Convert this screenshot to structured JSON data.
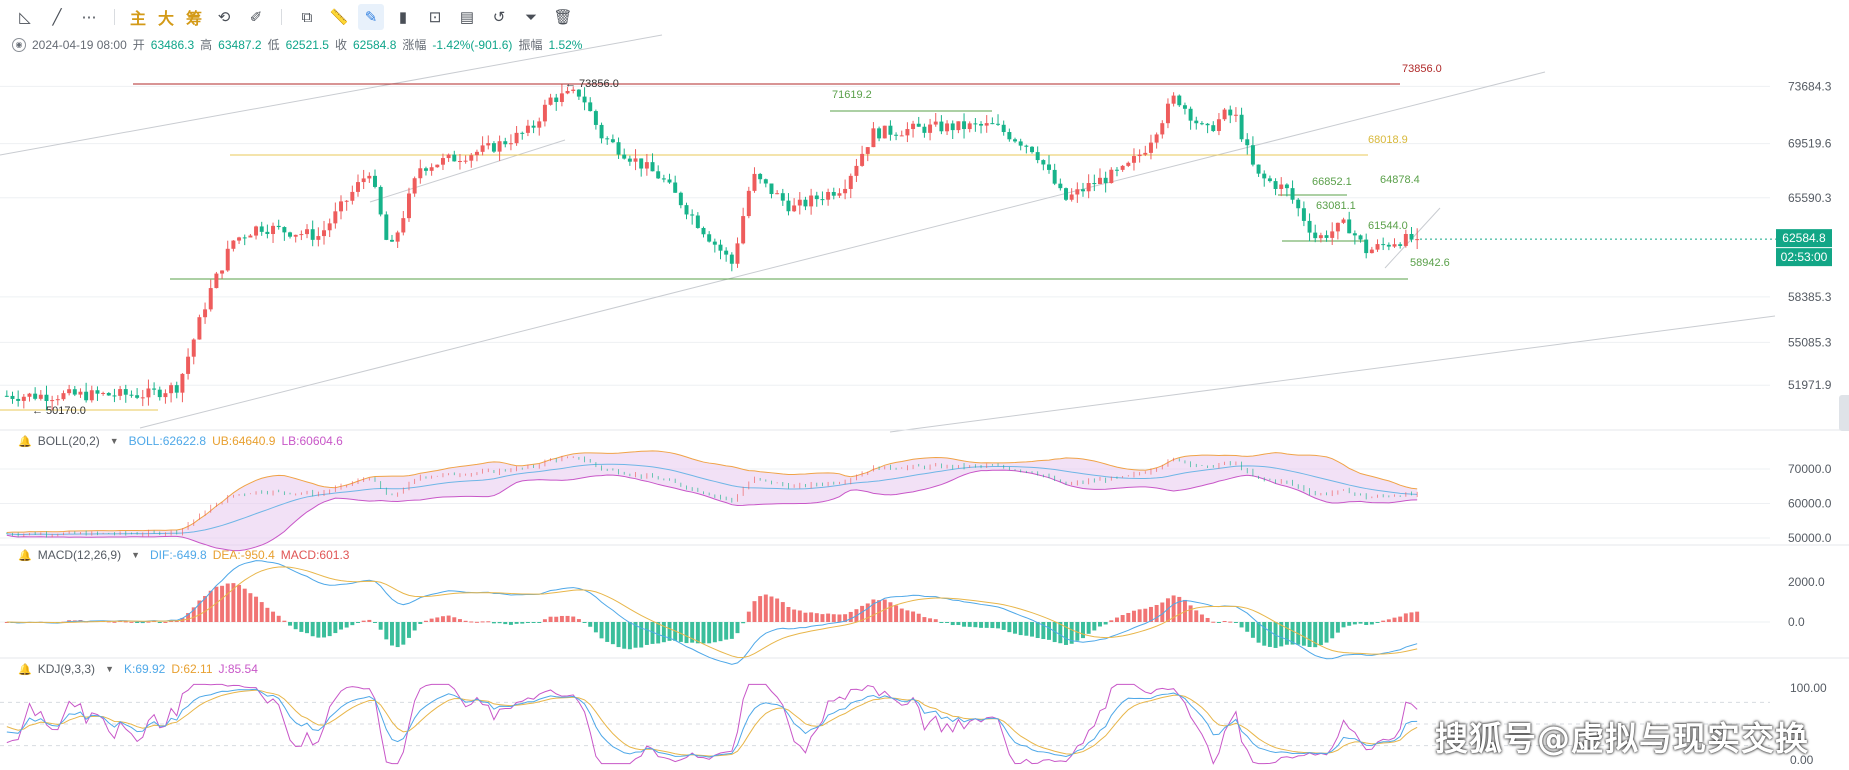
{
  "toolbar": {
    "items": [
      {
        "name": "trend-angle-icon",
        "glyph": "◺"
      },
      {
        "name": "line-tool-icon",
        "glyph": "╱"
      },
      {
        "name": "more-tools-icon",
        "glyph": "⋯"
      },
      {
        "sep": true
      },
      {
        "name": "main-indicator-button",
        "text": "主",
        "cn": true
      },
      {
        "name": "large-button",
        "text": "大",
        "cn": true
      },
      {
        "name": "chip-button",
        "text": "筹",
        "cn": true
      },
      {
        "name": "indicator-edit-icon",
        "glyph": "⟲"
      },
      {
        "name": "draw-erase-icon",
        "glyph": "✐"
      },
      {
        "sep": true
      },
      {
        "name": "copy-icon",
        "glyph": "⧉"
      },
      {
        "name": "ruler-icon",
        "glyph": "📏"
      },
      {
        "name": "pen-icon",
        "glyph": "✎",
        "active": true
      },
      {
        "name": "candle-type-icon",
        "glyph": "▮"
      },
      {
        "name": "lock-icon",
        "glyph": "⊡"
      },
      {
        "name": "note-icon",
        "glyph": "▤"
      },
      {
        "name": "magnet-icon",
        "glyph": "↺"
      },
      {
        "name": "filter-icon",
        "glyph": "⏷"
      },
      {
        "name": "trash-icon",
        "glyph": "🗑"
      }
    ]
  },
  "ohlc": {
    "date": "2024-04-19 08:00",
    "open_label": "开",
    "open": "63486.3",
    "high_label": "高",
    "high": "63487.2",
    "low_label": "低",
    "low": "62521.5",
    "close_label": "收",
    "close": "62584.8",
    "change_label": "涨幅",
    "change": "-1.42%(-901.6)",
    "amp_label": "振幅",
    "amp": "1.52%"
  },
  "indicators": {
    "boll": {
      "name": "BOLL(20,2)",
      "mid": "BOLL:62622.8",
      "ub": "UB:64640.9",
      "lb": "LB:60604.6"
    },
    "macd": {
      "name": "MACD(12,26,9)",
      "dif": "DIF:-649.8",
      "dea": "DEA:-950.4",
      "macd": "MACD:601.3"
    },
    "kdj": {
      "name": "KDJ(9,3,3)",
      "k": "K:69.92",
      "d": "D:62.11",
      "j": "J:85.54"
    }
  },
  "colors": {
    "up": "#ee5c5c",
    "down": "#17b38a",
    "boll_mid": "#6fb6e6",
    "boll_ub": "#f0a347",
    "boll_lb": "#c857c8",
    "boll_fill": "#e7c8ef",
    "dif": "#4fa8e8",
    "dea": "#e8b64a",
    "macd_up": "#ee5c5c",
    "macd_down": "#17b38a",
    "k": "#4fa8e8",
    "d": "#e8b64a",
    "j": "#c857c8",
    "price_tag": "#12a686",
    "grid": "#eef0f3",
    "axis_text": "#555b63"
  },
  "chart_data": {
    "type": "candlestick",
    "price_ticks": [
      "73684.3",
      "69519.6",
      "65590.3",
      "58385.3",
      "55085.3",
      "51971.9"
    ],
    "current_price": "62584.8",
    "countdown": "02:53:00",
    "boll_ticks": [
      "70000.0",
      "60000.0",
      "50000.0"
    ],
    "macd_ticks": [
      "2000.0",
      "0.0"
    ],
    "kdj_ticks": [
      "100.00",
      "0.00"
    ],
    "annotations": [
      {
        "text": "73856.0",
        "role": "top-resistance-line",
        "price": 73856.0
      },
      {
        "text": "← 73856.0",
        "role": "high-marker",
        "price": 73856.0
      },
      {
        "text": "71619.2",
        "role": "range-top",
        "price": 71619.2
      },
      {
        "text": "68018.9",
        "role": "yellow-line",
        "price": 68018.9
      },
      {
        "text": "64878.4",
        "role": "label",
        "price": 64878.4
      },
      {
        "text": "66852.1",
        "role": "box-top",
        "price": 66852.1
      },
      {
        "text": "63081.1",
        "role": "box-mid",
        "price": 63081.1
      },
      {
        "text": "61544.0",
        "role": "box-low",
        "price": 61544.0
      },
      {
        "text": "58942.6",
        "role": "support-line",
        "price": 58942.6
      },
      {
        "text": "← 50170.0",
        "role": "low-marker",
        "price": 50170.0
      }
    ],
    "series_summary": {
      "candles": 250,
      "start_price": 51200,
      "peak_price": 73856,
      "last_close": 62584.8
    }
  },
  "watermark": "搜狐号@虚拟与现实交换"
}
